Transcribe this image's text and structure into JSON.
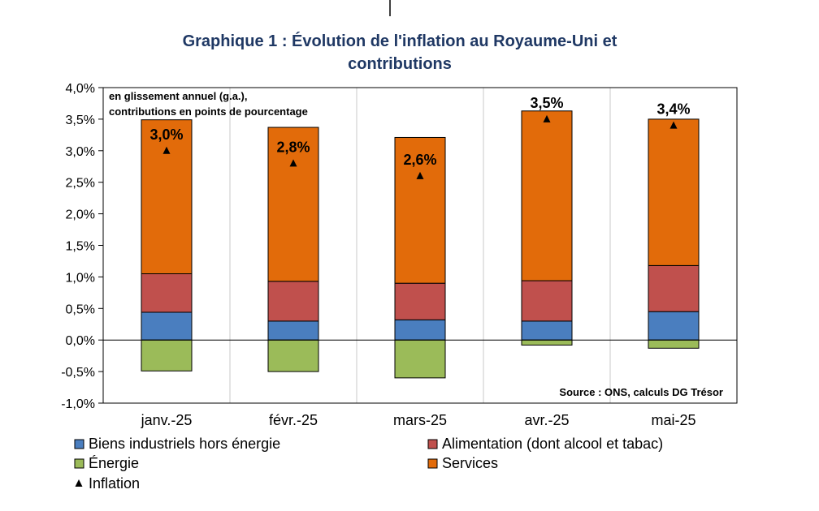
{
  "chart_data": {
    "type": "bar",
    "title_line1": "Graphique 1 : Évolution de l'inflation au Royaume-Uni et",
    "title_line2": "contributions",
    "note_line1": "en glissement annuel (g.a.),",
    "note_line2": "contributions en points de pourcentage",
    "source": "Source : ONS, calculs DG Trésor",
    "ylim": [
      -1.0,
      4.0
    ],
    "yticks": [
      "-1,0%",
      "-0,5%",
      "0,0%",
      "0,5%",
      "1,0%",
      "1,5%",
      "2,0%",
      "2,5%",
      "3,0%",
      "3,5%",
      "4,0%"
    ],
    "categories": [
      "janv.-25",
      "févr.-25",
      "mars-25",
      "avr.-25",
      "mai-25"
    ],
    "series": [
      {
        "name": "Biens industriels hors énergie",
        "color": "#4a7ebf",
        "values": [
          0.44,
          0.3,
          0.32,
          0.3,
          0.45
        ]
      },
      {
        "name": "Alimentation (dont alcool et tabac)",
        "color": "#c0504d",
        "values": [
          0.61,
          0.63,
          0.58,
          0.64,
          0.73
        ]
      },
      {
        "name": "Énergie",
        "color": "#9bbb59",
        "values": [
          -0.49,
          -0.5,
          -0.6,
          -0.08,
          -0.13
        ]
      },
      {
        "name": "Services",
        "color": "#e26b0a",
        "values": [
          2.44,
          2.44,
          2.31,
          2.69,
          2.32
        ]
      }
    ],
    "inflation": {
      "name": "Inflation",
      "values": [
        3.0,
        2.8,
        2.6,
        3.5,
        3.4
      ],
      "labels": [
        "3,0%",
        "2,8%",
        "2,6%",
        "3,5%",
        "3,4%"
      ]
    }
  }
}
